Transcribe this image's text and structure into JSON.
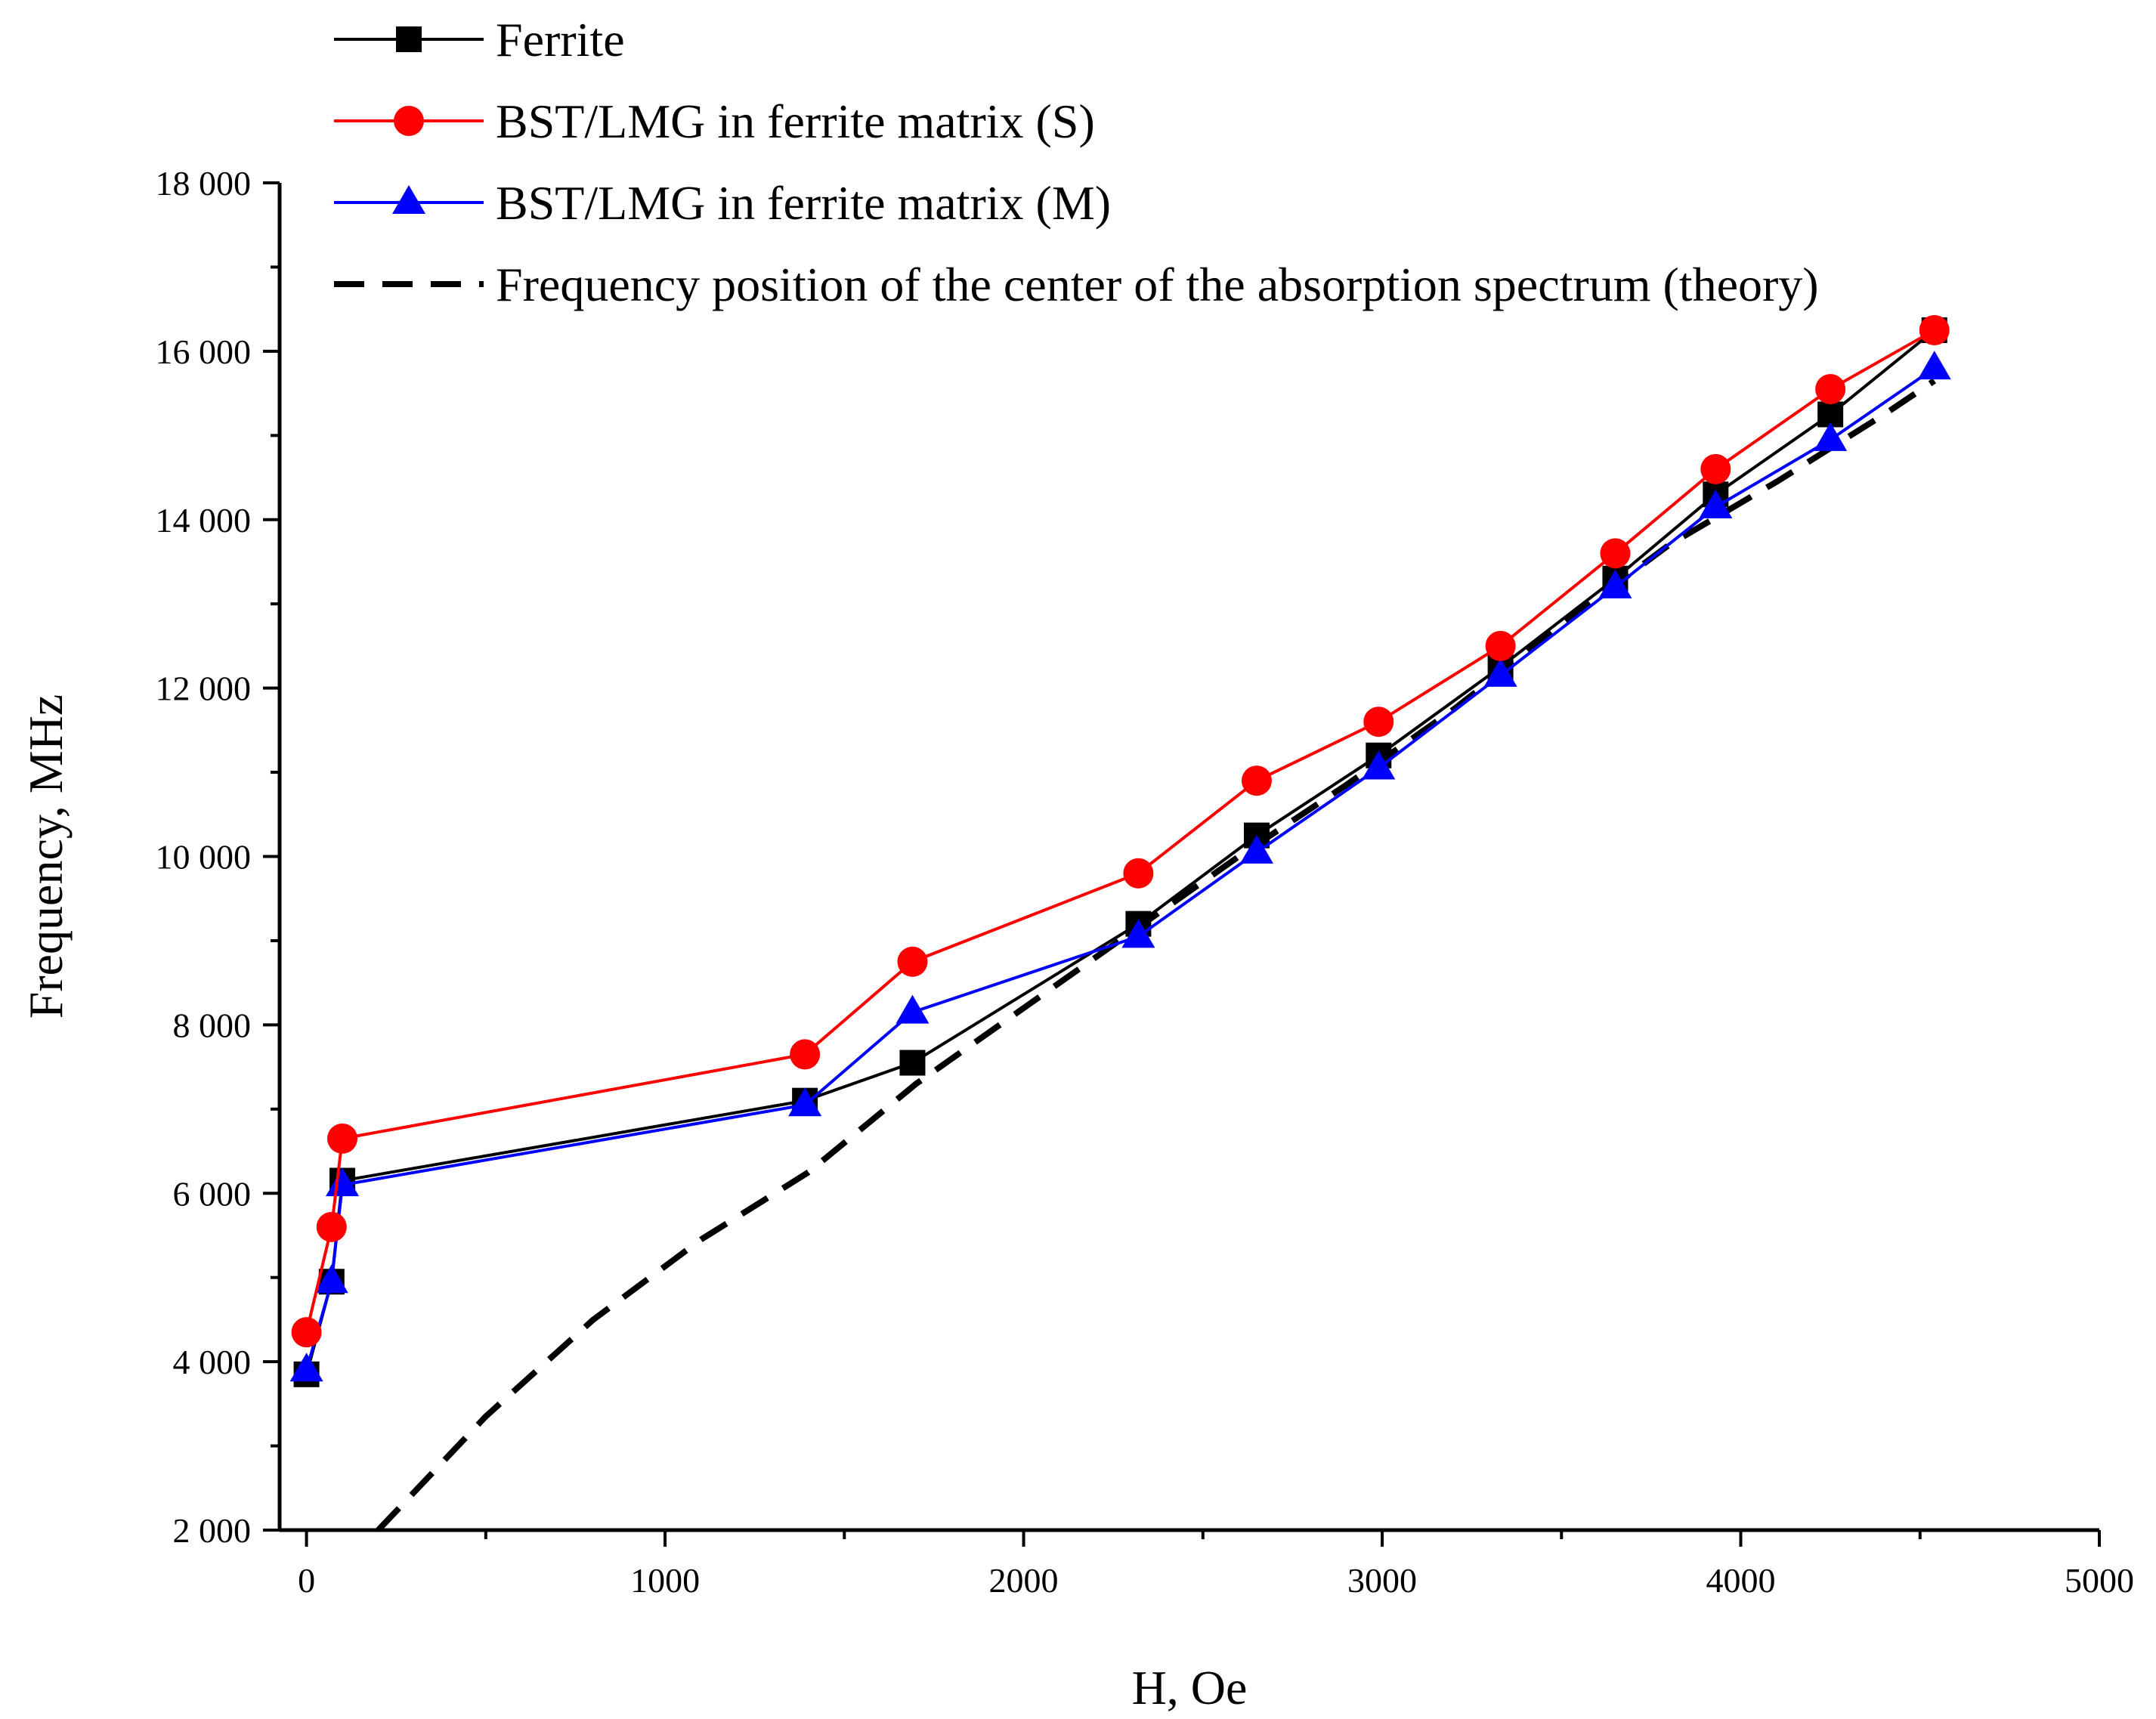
{
  "chart_data": {
    "type": "line",
    "xlabel": "H, Oe",
    "ylabel": "Frequency, MHz",
    "xlim": [
      -75,
      5000
    ],
    "ylim": [
      2000,
      18000
    ],
    "xticks": [
      0,
      1000,
      2000,
      3000,
      4000,
      5000
    ],
    "xtick_labels": [
      "0",
      "1000",
      "2000",
      "3000",
      "4000",
      "5000"
    ],
    "yticks": [
      2000,
      4000,
      6000,
      8000,
      10000,
      12000,
      14000,
      16000,
      18000
    ],
    "ytick_labels": [
      "2 000",
      "4 000",
      "6 000",
      "8 000",
      "10 000",
      "12 000",
      "14 000",
      "16 000",
      "18 000"
    ],
    "legend_position": "top-left",
    "series": [
      {
        "name": "Ferrite",
        "color": "#000000",
        "marker": "square",
        "style": "solid",
        "x": [
          0,
          70,
          100,
          1390,
          1690,
          2320,
          2650,
          2990,
          3330,
          3650,
          3930,
          4250,
          4540
        ],
        "y": [
          3850,
          4950,
          6150,
          7100,
          7550,
          9200,
          10250,
          11200,
          12250,
          13300,
          14300,
          15250,
          16250
        ]
      },
      {
        "name": "BST/LMG in ferrite matrix (S)",
        "color": "#ff0000",
        "marker": "circle",
        "style": "solid",
        "x": [
          0,
          70,
          100,
          1390,
          1690,
          2320,
          2650,
          2990,
          3330,
          3650,
          3930,
          4250,
          4540
        ],
        "y": [
          4350,
          5600,
          6650,
          7650,
          8750,
          9800,
          10900,
          11600,
          12500,
          13600,
          14600,
          15550,
          16250
        ]
      },
      {
        "name": "BST/LMG in ferrite matrix (M)",
        "color": "#0000ff",
        "marker": "triangle",
        "style": "solid",
        "x": [
          0,
          70,
          100,
          1390,
          1690,
          2320,
          2650,
          2990,
          3330,
          3650,
          3930,
          4250,
          4540
        ],
        "y": [
          3900,
          4950,
          6100,
          7050,
          8150,
          9050,
          10050,
          11050,
          12150,
          13200,
          14150,
          14950,
          15800
        ]
      },
      {
        "name": "Frequency position of the center of the absorption spectrum (theory)",
        "color": "#000000",
        "marker": "none",
        "style": "dashed",
        "x": [
          200,
          500,
          800,
          1100,
          1400,
          1700,
          2000,
          2300,
          2600,
          2900,
          3200,
          3500,
          3800,
          4100,
          4400,
          4540
        ],
        "y": [
          2000,
          3350,
          4500,
          5450,
          6250,
          7300,
          8200,
          9100,
          10000,
          10850,
          11750,
          12750,
          13700,
          14450,
          15250,
          15650
        ]
      }
    ]
  }
}
